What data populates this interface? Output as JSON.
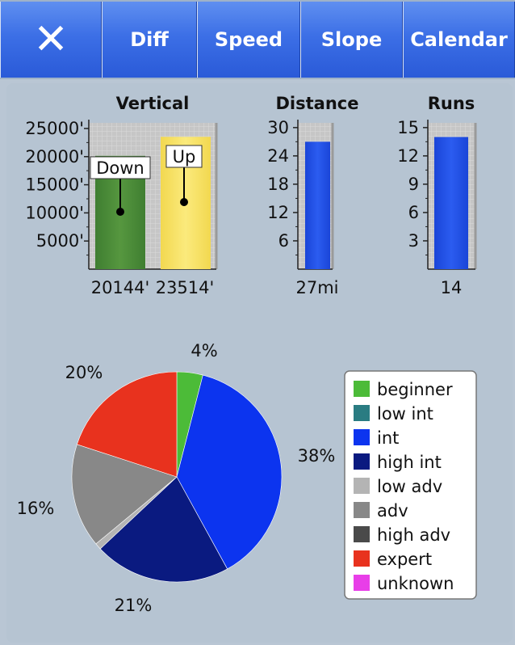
{
  "toolbar": {
    "close_glyph": "✕",
    "tabs": [
      "Diff",
      "Speed",
      "Slope",
      "Calendar"
    ]
  },
  "chart_data": [
    {
      "type": "bar",
      "title": "Vertical",
      "categories": [
        "Down",
        "Up"
      ],
      "values": [
        20144,
        23514
      ],
      "tick_labels": [
        "25000'",
        "20000'",
        "15000'",
        "10000'",
        "5000'"
      ],
      "ticks": [
        25000,
        20000,
        15000,
        10000,
        5000
      ],
      "ylim": [
        0,
        26000
      ],
      "value_labels": [
        "20144'",
        "23514'"
      ],
      "colors": [
        "#4b8a3c",
        "#f8e268"
      ],
      "grid": true
    },
    {
      "type": "bar",
      "title": "Distance",
      "values": [
        27
      ],
      "value_label": "27mi",
      "tick_labels": [
        "30",
        "24",
        "18",
        "12",
        "6"
      ],
      "ticks": [
        30,
        24,
        18,
        12,
        6
      ],
      "ylim": [
        0,
        31
      ],
      "colors": [
        "#2255e0"
      ],
      "grid": true
    },
    {
      "type": "bar",
      "title": "Runs",
      "values": [
        14
      ],
      "value_label": "14",
      "tick_labels": [
        "15",
        "12",
        "9",
        "6",
        "3"
      ],
      "ticks": [
        15,
        12,
        9,
        6,
        3
      ],
      "ylim": [
        0,
        15.5
      ],
      "colors": [
        "#2255e0"
      ],
      "grid": true
    },
    {
      "type": "pie",
      "slices": [
        {
          "name": "beginner",
          "value": 4,
          "label": "4%",
          "color": "#4cbb38"
        },
        {
          "name": "int",
          "value": 38,
          "label": "38%",
          "color": "#0c34ef"
        },
        {
          "name": "high int",
          "value": 21,
          "label": "21%",
          "color": "#0a1a80"
        },
        {
          "name": "low adv",
          "value": 1,
          "label": "",
          "color": "#b4b4b4"
        },
        {
          "name": "adv",
          "value": 16,
          "label": "16%",
          "color": "#888888"
        },
        {
          "name": "expert",
          "value": 20,
          "label": "20%",
          "color": "#e8321e"
        }
      ],
      "legend": [
        {
          "name": "beginner",
          "color": "#4cbb38"
        },
        {
          "name": "low int",
          "color": "#2a7c82"
        },
        {
          "name": "int",
          "color": "#0c34ef"
        },
        {
          "name": "high int",
          "color": "#0a1a80"
        },
        {
          "name": "low adv",
          "color": "#b4b4b4"
        },
        {
          "name": "adv",
          "color": "#888888"
        },
        {
          "name": "high adv",
          "color": "#4a4a4a"
        },
        {
          "name": "expert",
          "color": "#e8321e"
        },
        {
          "name": "unknown",
          "color": "#e83ee8"
        }
      ],
      "legend_position": "right"
    }
  ]
}
